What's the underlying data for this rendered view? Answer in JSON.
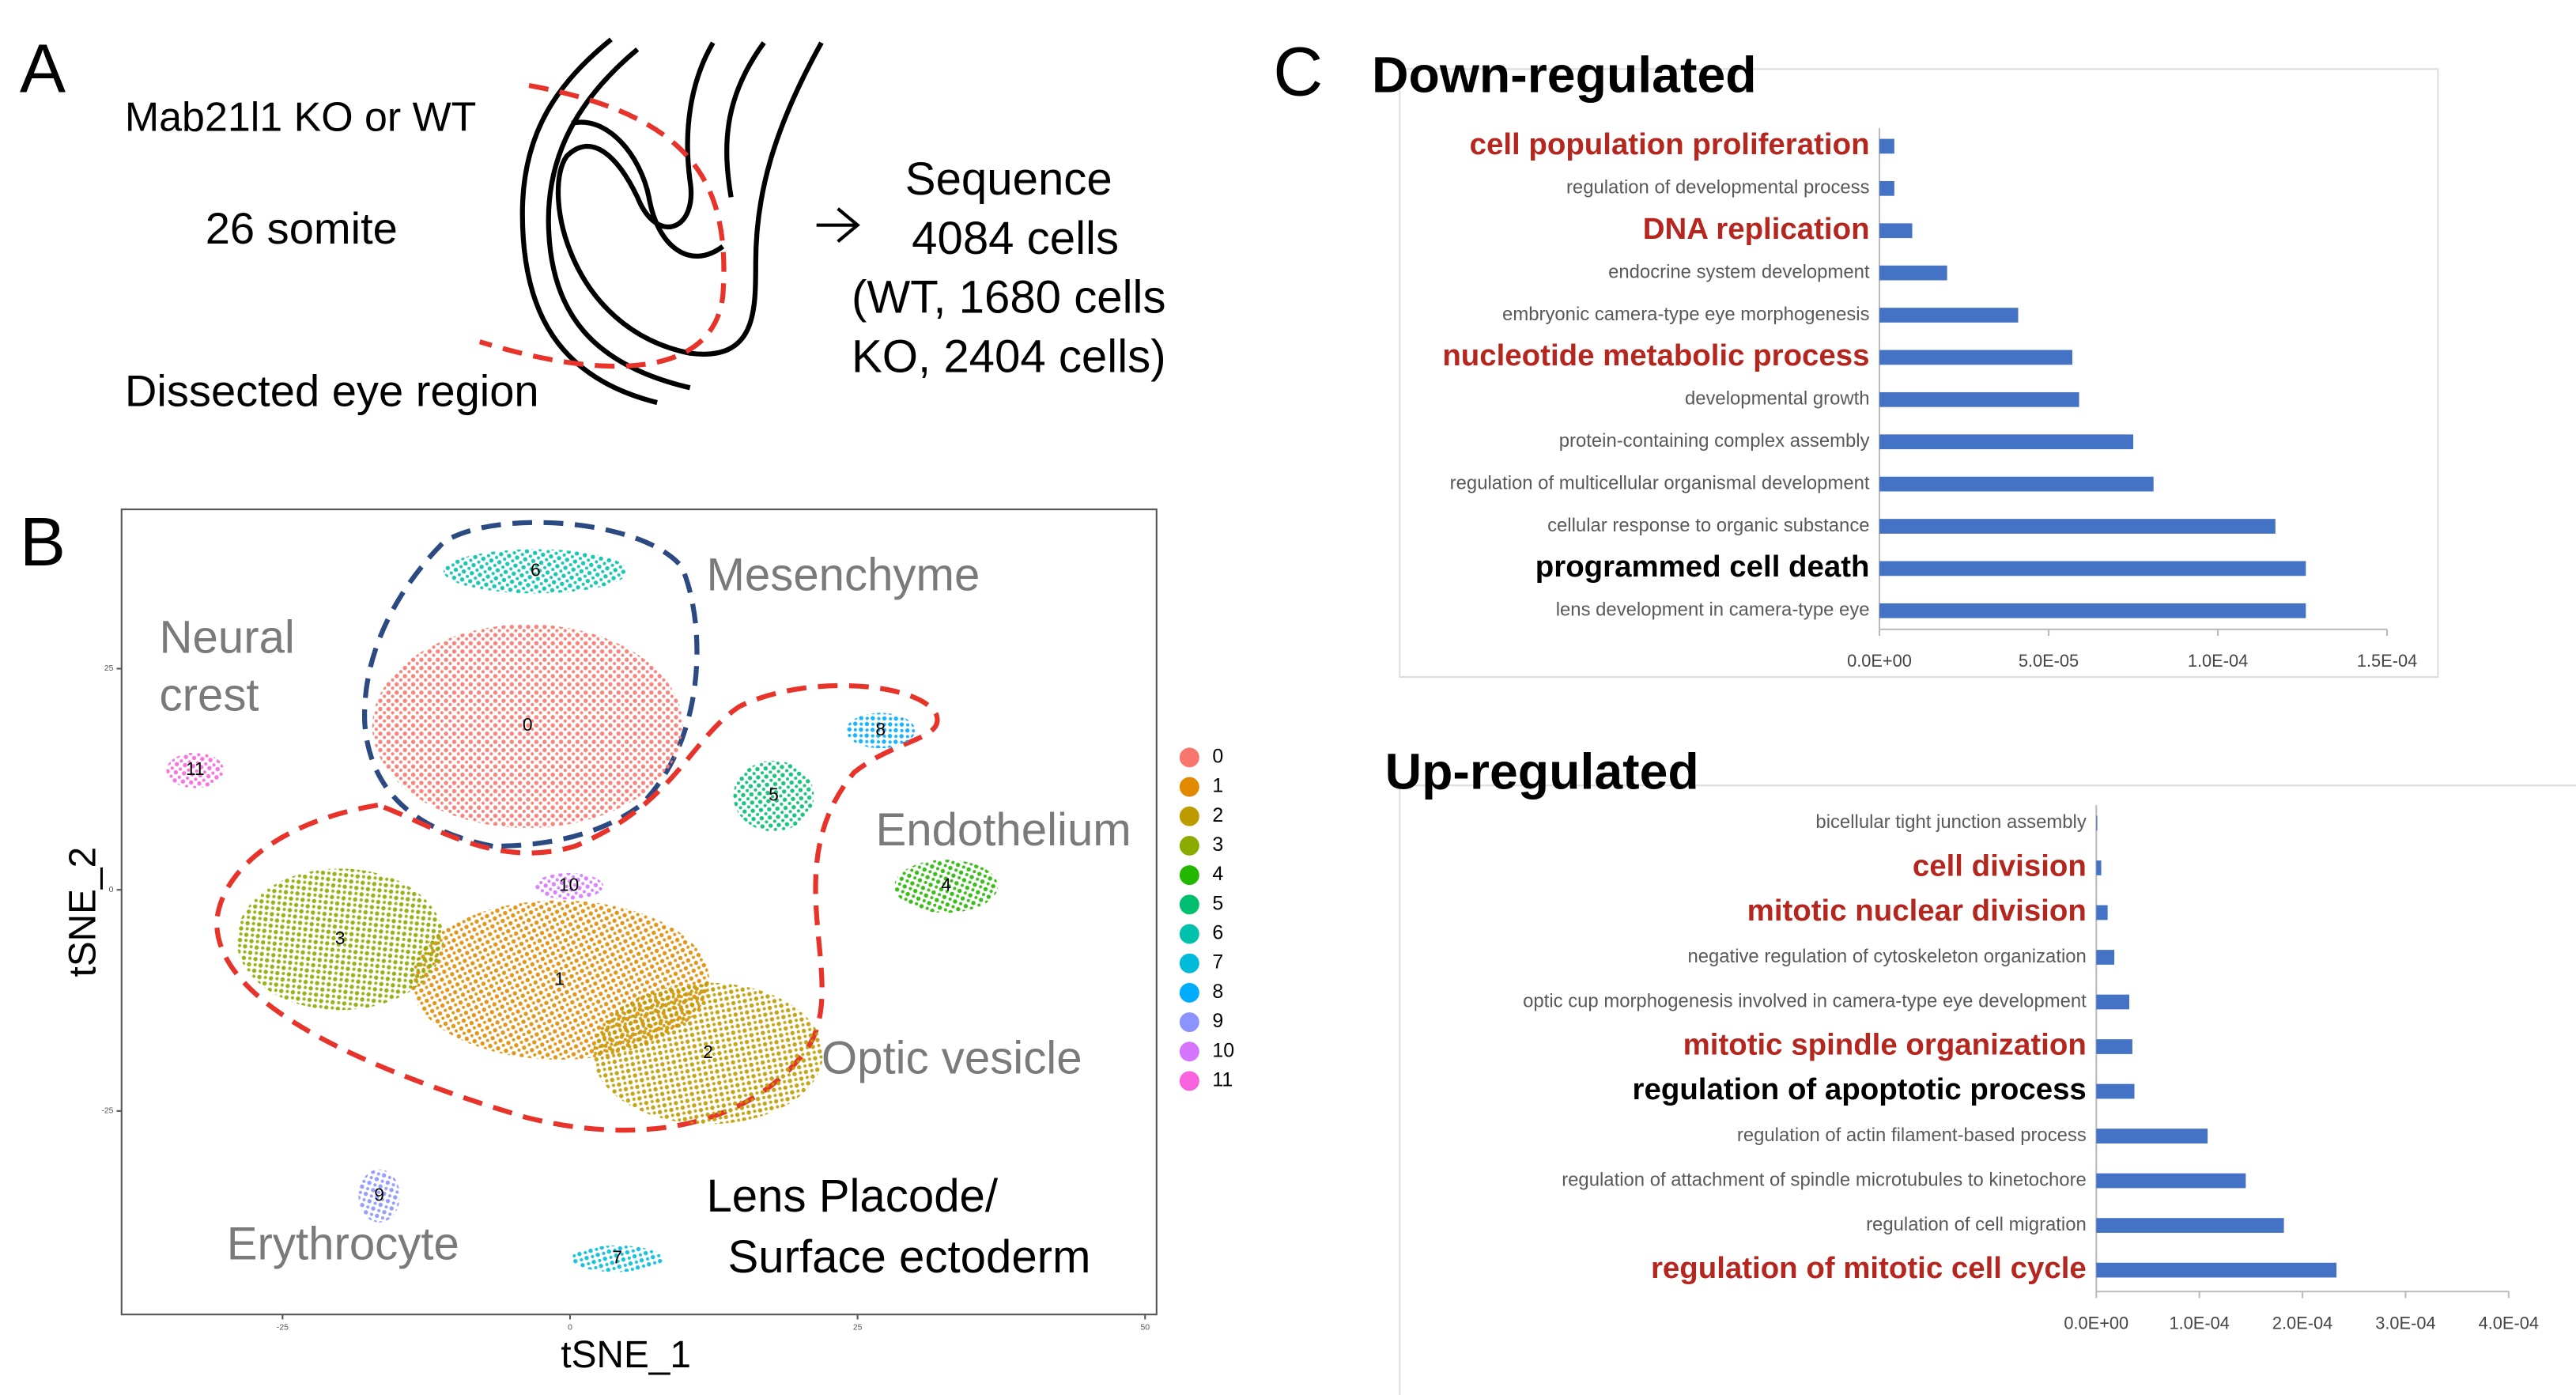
{
  "panel_a": {
    "letter": "A",
    "condition": "Mab21l1 KO or WT",
    "stage": "26 somite",
    "region": "Dissected eye region",
    "sequence_lines": [
      "Sequence",
      "4084 cells",
      "(WT, 1680 cells",
      "KO, 2404 cells)"
    ]
  },
  "panel_b": {
    "letter": "B"
  },
  "panel_c": {
    "letter": "C"
  },
  "chart_data": [
    {
      "type": "scatter",
      "xlabel": "tSNE_1",
      "ylabel": "tSNE_2",
      "xlim": [
        -39,
        51
      ],
      "ylim": [
        -48,
        43
      ],
      "xticks": [
        -25,
        0,
        25,
        50
      ],
      "yticks": [
        -25,
        0,
        25
      ],
      "series": [
        {
          "name": "0",
          "color": "#F8766D",
          "center": [
            -3.7,
            18.5
          ],
          "spread": [
            13.5,
            11.5
          ]
        },
        {
          "name": "1",
          "color": "#E18A00",
          "center": [
            -0.9,
            -10.2
          ],
          "spread": [
            13,
            9
          ]
        },
        {
          "name": "2",
          "color": "#BE9C00",
          "center": [
            12,
            -18.5
          ],
          "spread": [
            10,
            8
          ]
        },
        {
          "name": "3",
          "color": "#8CAB00",
          "center": [
            -20,
            -5.6
          ],
          "spread": [
            9,
            8
          ]
        },
        {
          "name": "4",
          "color": "#24B700",
          "center": [
            32.7,
            0.4
          ],
          "spread": [
            4.5,
            3
          ]
        },
        {
          "name": "5",
          "color": "#00BE70",
          "center": [
            17.7,
            10.6
          ],
          "spread": [
            3.5,
            4
          ]
        },
        {
          "name": "6",
          "color": "#00C1AB",
          "center": [
            -3,
            36
          ],
          "spread": [
            8,
            2.5
          ]
        },
        {
          "name": "7",
          "color": "#00BBDA",
          "center": [
            4.1,
            -41.7
          ],
          "spread": [
            4,
            1.5
          ]
        },
        {
          "name": "8",
          "color": "#00ACFC",
          "center": [
            27,
            18
          ],
          "spread": [
            3,
            2
          ]
        },
        {
          "name": "9",
          "color": "#8B93FF",
          "center": [
            -16.6,
            -34.6
          ],
          "spread": [
            1.8,
            3
          ]
        },
        {
          "name": "10",
          "color": "#D575FE",
          "center": [
            -0.1,
            0.4
          ],
          "spread": [
            3,
            1.5
          ]
        },
        {
          "name": "11",
          "color": "#F962DD",
          "center": [
            -32.6,
            13.5
          ],
          "spread": [
            2.5,
            2
          ]
        }
      ],
      "annotations": [
        {
          "lines": [
            "Mesenchyme"
          ],
          "color": "#7a7a7a"
        },
        {
          "lines": [
            "Neural",
            "crest"
          ],
          "color": "#7a7a7a"
        },
        {
          "lines": [
            "Endothelium"
          ],
          "color": "#7a7a7a"
        },
        {
          "lines": [
            "Optic vesicle"
          ],
          "color": "#7a7a7a"
        },
        {
          "lines": [
            "Erythrocyte"
          ],
          "color": "#7a7a7a"
        },
        {
          "lines": [
            "Lens Placode/",
            "Surface ectoderm"
          ],
          "color": "#000000"
        }
      ]
    },
    {
      "type": "barh",
      "title": "Down-regulated",
      "color": "#4472c4",
      "categories": [
        "cell population proliferation",
        "regulation of developmental process",
        "DNA replication",
        "endocrine system development",
        "embryonic camera-type eye morphogenesis",
        "nucleotide metabolic process",
        "developmental growth",
        "protein-containing complex assembly",
        "regulation of multicellular organismal development",
        "cellular response to organic substance",
        "programmed cell death",
        "lens development in camera-type eye"
      ],
      "values": [
        4.4e-06,
        4.4e-06,
        9.7e-06,
        2e-05,
        4.1e-05,
        5.7e-05,
        5.9e-05,
        7.5e-05,
        8.1e-05,
        0.000117,
        0.000126,
        0.000126
      ],
      "label_colors": [
        "#b5261e",
        "#595959",
        "#b5261e",
        "#595959",
        "#595959",
        "#b5261e",
        "#595959",
        "#595959",
        "#595959",
        "#595959",
        "#000000",
        "#595959"
      ],
      "xlim": [
        0,
        0.00015
      ],
      "xticks": [
        {
          "value": 0,
          "label": "0.0E+00"
        },
        {
          "value": 5e-05,
          "label": "5.0E-05"
        },
        {
          "value": 0.0001,
          "label": "1.0E-04"
        },
        {
          "value": 0.00015,
          "label": "1.5E-04"
        }
      ]
    },
    {
      "type": "barh",
      "title": "Up-regulated",
      "color": "#4472c4",
      "categories": [
        "bicellular tight junction assembly",
        "cell division",
        "mitotic nuclear division",
        "negative regulation of cytoskeleton organization",
        "optic cup morphogenesis involved in camera-type eye development",
        "mitotic spindle organization",
        "regulation of apoptotic process",
        "regulation of actin filament-based process",
        "regulation of attachment of spindle microtubules to kinetochore",
        "regulation of cell migration",
        "regulation of mitotic cell cycle"
      ],
      "values": [
        1e-06,
        4.8e-06,
        1.1e-05,
        1.75e-05,
        3.2e-05,
        3.5e-05,
        3.7e-05,
        0.000108,
        0.000145,
        0.000182,
        0.000233
      ],
      "label_colors": [
        "#595959",
        "#b5261e",
        "#b5261e",
        "#595959",
        "#595959",
        "#b5261e",
        "#000000",
        "#595959",
        "#595959",
        "#595959",
        "#b5261e"
      ],
      "xlim": [
        0,
        0.0004
      ],
      "xticks": [
        {
          "value": 0,
          "label": "0.0E+00"
        },
        {
          "value": 0.0001,
          "label": "1.0E-04"
        },
        {
          "value": 0.0002,
          "label": "2.0E-04"
        },
        {
          "value": 0.0003,
          "label": "3.0E-04"
        },
        {
          "value": 0.0004,
          "label": "4.0E-04"
        }
      ]
    }
  ]
}
